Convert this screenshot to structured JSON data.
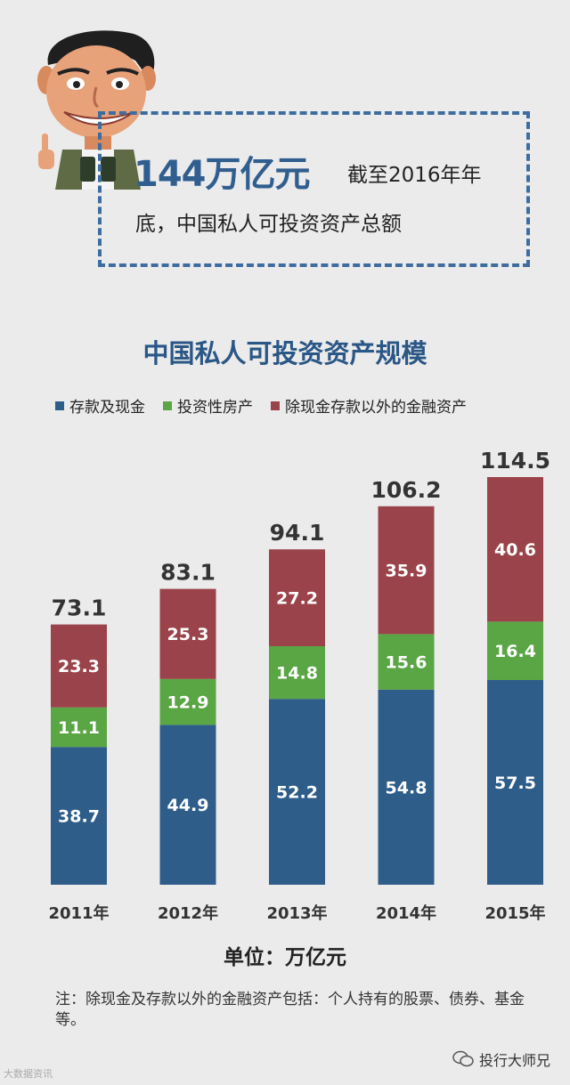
{
  "header": {
    "headline": "144万亿元",
    "headline_tail": "截至2016年年",
    "headline_line2": "底，中国私人可投资资产总额"
  },
  "legend": [
    {
      "label": "存款及现金",
      "color": "#2e5d8a"
    },
    {
      "label": "投资性房产",
      "color": "#5aa544"
    },
    {
      "label": "除现金存款以外的金融资产",
      "color": "#9b434a"
    }
  ],
  "chart_data": {
    "type": "bar",
    "stacked": true,
    "title": "中国私人可投资资产规模",
    "categories": [
      "2011年",
      "2012年",
      "2013年",
      "2014年",
      "2015年"
    ],
    "series": [
      {
        "name": "存款及现金",
        "values": [
          38.7,
          44.9,
          52.2,
          54.8,
          57.5
        ],
        "color": "#2e5d8a"
      },
      {
        "name": "投资性房产",
        "values": [
          11.1,
          12.9,
          14.8,
          15.6,
          16.4
        ],
        "color": "#5aa544"
      },
      {
        "name": "除现金存款以外的金融资产",
        "values": [
          23.3,
          25.3,
          27.2,
          35.9,
          40.6
        ],
        "color": "#9b434a"
      }
    ],
    "totals": [
      "73.1",
      "83.1",
      "94.1",
      "106.2",
      "114.5"
    ],
    "legend_position": "top-left",
    "grid": false
  },
  "unit_label": "单位：万亿元",
  "note": "注：除现金及存款以外的金融资产包括：个人持有的股票、债券、基金等。",
  "footer": {
    "watermark": "大数据资讯",
    "brand": "投行大师兄"
  }
}
